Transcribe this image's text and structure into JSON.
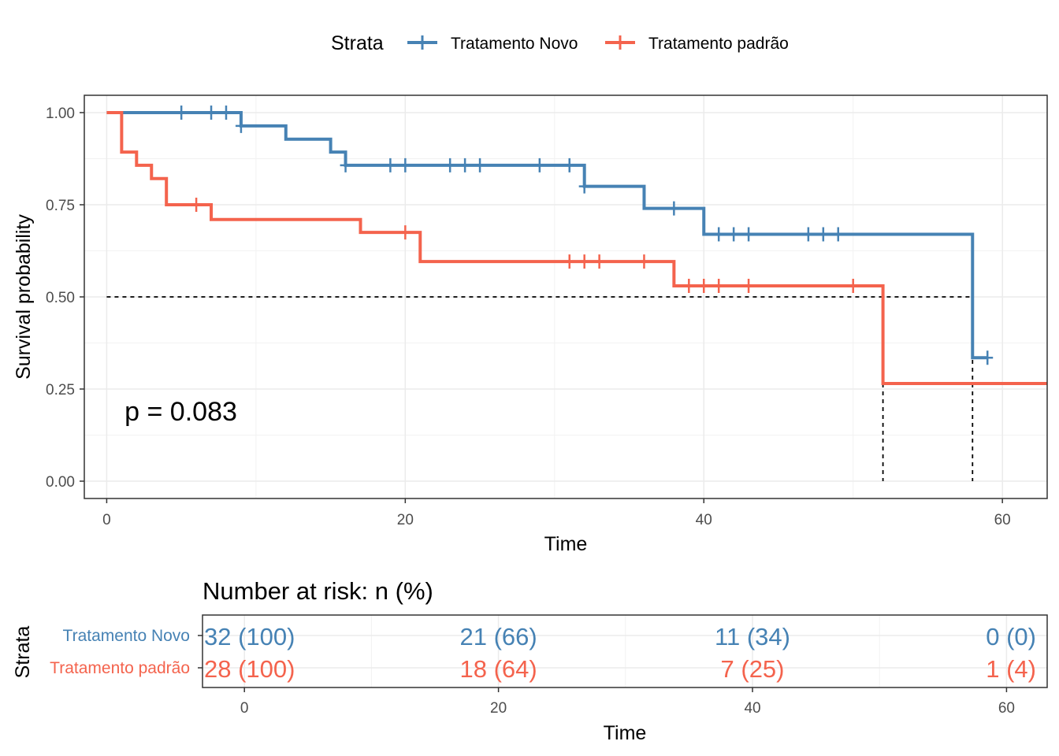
{
  "legend": {
    "title": "Strata",
    "items": [
      {
        "label": "Tratamento Novo",
        "color": "#4682B4"
      },
      {
        "label": "Tratamento padrão",
        "color": "#F4634D"
      }
    ]
  },
  "chart_data": [
    {
      "type": "line",
      "subtype": "kaplan-meier step",
      "xlabel": "Time",
      "ylabel": "Survival probability",
      "xlim": [
        -1.5,
        63
      ],
      "ylim": [
        -0.047,
        1.047
      ],
      "x_ticks": [
        0,
        20,
        40,
        60
      ],
      "x_tick_labels": [
        "0",
        "20",
        "40",
        "60"
      ],
      "y_ticks": [
        0,
        0.25,
        0.5,
        0.75,
        1.0
      ],
      "y_tick_labels": [
        "0.00",
        "0.25",
        "0.50",
        "0.75",
        "1.00"
      ],
      "grid": true,
      "legend_position": "top",
      "annotation": "p = 0.083",
      "annotation_at": {
        "x": 1.2,
        "y": 0.19
      },
      "median_line_y": 0.5,
      "medians": [
        52,
        58
      ],
      "series": [
        {
          "name": "Tratamento Novo",
          "color": "#4682B4",
          "steps": [
            [
              0,
              1.0
            ],
            [
              9,
              0.964
            ],
            [
              12,
              0.928
            ],
            [
              15,
              0.893
            ],
            [
              16,
              0.857
            ],
            [
              32,
              0.8
            ],
            [
              36,
              0.74
            ],
            [
              40,
              0.67
            ],
            [
              58,
              0.335
            ]
          ],
          "end_x": 59,
          "censored": [
            [
              5,
              1.0
            ],
            [
              7,
              1.0
            ],
            [
              8,
              1.0
            ],
            [
              9,
              0.964
            ],
            [
              16,
              0.857
            ],
            [
              19,
              0.857
            ],
            [
              20,
              0.857
            ],
            [
              23,
              0.857
            ],
            [
              24,
              0.857
            ],
            [
              25,
              0.857
            ],
            [
              29,
              0.857
            ],
            [
              31,
              0.857
            ],
            [
              32,
              0.8
            ],
            [
              38,
              0.74
            ],
            [
              41,
              0.67
            ],
            [
              42,
              0.67
            ],
            [
              43,
              0.67
            ],
            [
              47,
              0.67
            ],
            [
              48,
              0.67
            ],
            [
              49,
              0.67
            ],
            [
              59,
              0.335
            ]
          ]
        },
        {
          "name": "Tratamento padrão",
          "color": "#F4634D",
          "steps": [
            [
              0,
              1.0
            ],
            [
              1,
              0.893
            ],
            [
              2,
              0.857
            ],
            [
              3,
              0.821
            ],
            [
              4,
              0.75
            ],
            [
              7,
              0.71
            ],
            [
              17,
              0.675
            ],
            [
              21,
              0.596
            ],
            [
              38,
              0.53
            ],
            [
              52,
              0.265
            ]
          ],
          "end_x": 63,
          "censored": [
            [
              6,
              0.75
            ],
            [
              20,
              0.675
            ],
            [
              31,
              0.596
            ],
            [
              32,
              0.596
            ],
            [
              33,
              0.596
            ],
            [
              36,
              0.596
            ],
            [
              39,
              0.53
            ],
            [
              40,
              0.53
            ],
            [
              41,
              0.53
            ],
            [
              43,
              0.53
            ],
            [
              50,
              0.53
            ]
          ]
        }
      ]
    },
    {
      "type": "table",
      "title": "Number at risk: n (%)",
      "xlabel": "Time",
      "ylabel": "Strata",
      "xlim": [
        -3.3,
        63.2
      ],
      "x_ticks": [
        0,
        20,
        40,
        60
      ],
      "x_tick_labels": [
        "0",
        "20",
        "40",
        "60"
      ],
      "rows": [
        {
          "name": "Tratamento Novo",
          "color": "#4682B4",
          "times": [
            0,
            20,
            40,
            60
          ],
          "cells": [
            "32 (100)",
            "21 (66)",
            "11 (34)",
            "0 (0)"
          ]
        },
        {
          "name": "Tratamento padrão",
          "color": "#F4634D",
          "times": [
            0,
            20,
            40,
            60
          ],
          "cells": [
            "28 (100)",
            "18 (64)",
            "7 (25)",
            "1 (4)"
          ]
        }
      ]
    }
  ]
}
